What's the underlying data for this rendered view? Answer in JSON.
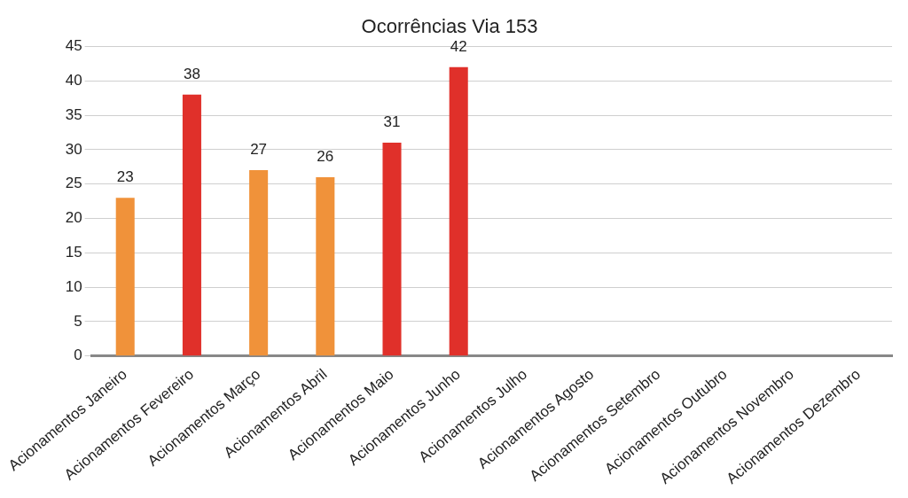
{
  "chart_data": {
    "type": "bar",
    "title": "Ocorrências Via 153",
    "categories": [
      "Acionamentos Janeiro",
      "Acionamentos Fevereiro",
      "Acionamentos Março",
      "Acionamentos Abril",
      "Acionamentos Maio",
      "Acionamentos Junho",
      "Acionamentos Julho",
      "Acionamentos Agosto",
      "Acionamentos Setembro",
      "Acionamentos Outubro",
      "Acionamentos Novembro",
      "Acionamentos Dezembro"
    ],
    "values": [
      23,
      38,
      27,
      26,
      31,
      42,
      null,
      null,
      null,
      null,
      null,
      null
    ],
    "colors": [
      "#f0923a",
      "#e0302a",
      "#f0923a",
      "#f0923a",
      "#e0302a",
      "#e0302a",
      "#f0923a",
      "#f0923a",
      "#f0923a",
      "#f0923a",
      "#f0923a",
      "#f0923a"
    ],
    "ylim": [
      0,
      45
    ],
    "yticks": [
      0,
      5,
      10,
      15,
      20,
      25,
      30,
      35,
      40,
      45
    ],
    "grid": "y",
    "data_labels": true,
    "legend": false
  }
}
